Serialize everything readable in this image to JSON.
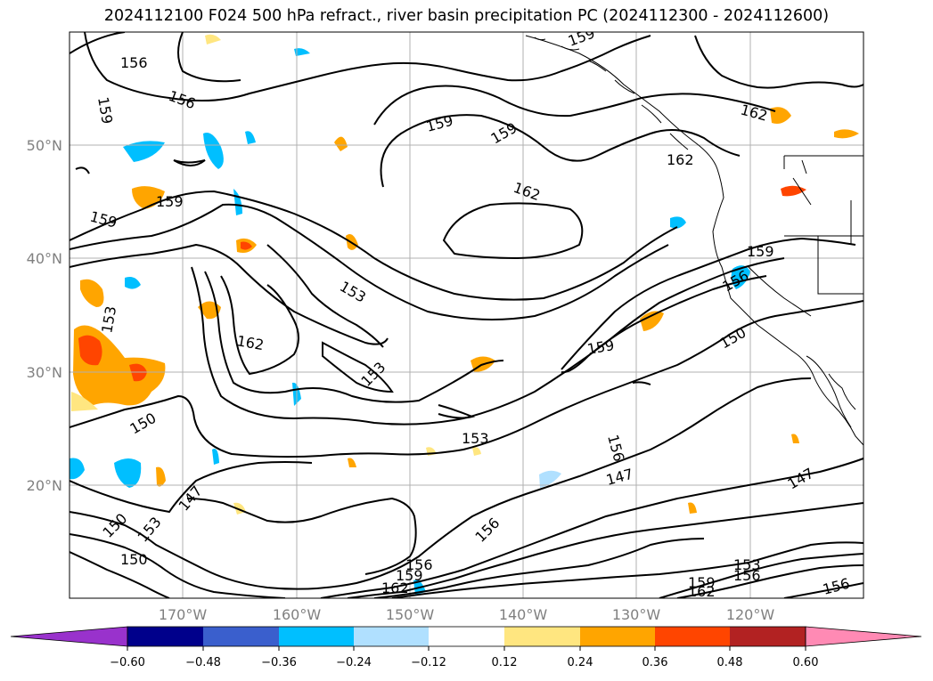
{
  "title": "2024112100 F024 500 hPa refract., river basin precipitation PC (2024112300 - 2024112600)",
  "map": {
    "lat_labels": [
      "50°N",
      "40°N",
      "30°N",
      "20°N"
    ],
    "lon_labels": [
      "170°W",
      "160°W",
      "150°W",
      "140°W",
      "130°W",
      "120°W"
    ],
    "contour_labels": [
      "156",
      "159",
      "156",
      "159",
      "159",
      "159",
      "162",
      "162",
      "162",
      "159",
      "159",
      "159",
      "153",
      "162",
      "153",
      "150",
      "153",
      "150",
      "156",
      "153",
      "156",
      "147",
      "150",
      "153",
      "156",
      "147",
      "159",
      "162",
      "150",
      "156",
      "162",
      "153",
      "156",
      "147",
      "156",
      "159",
      "159"
    ],
    "fill_colors": {
      "light_orange": "#ffe680",
      "orange": "#ffa500",
      "red_orange": "#ff4500",
      "cyan": "#00bfff",
      "light_blue": "#addfff",
      "land_line": "#000000",
      "grid": "#b0b0b0"
    }
  },
  "colorbar": {
    "ticks": [
      "−0.60",
      "−0.48",
      "−0.36",
      "−0.24",
      "−0.12",
      "0.12",
      "0.24",
      "0.36",
      "0.48",
      "0.60"
    ],
    "colors": [
      "#9932cc",
      "#00008b",
      "#3a5fcd",
      "#00bfff",
      "#b0e0ff",
      "#ffffff",
      "#ffe680",
      "#ffa500",
      "#ff4500",
      "#b22222",
      "#ff8ab4"
    ]
  }
}
